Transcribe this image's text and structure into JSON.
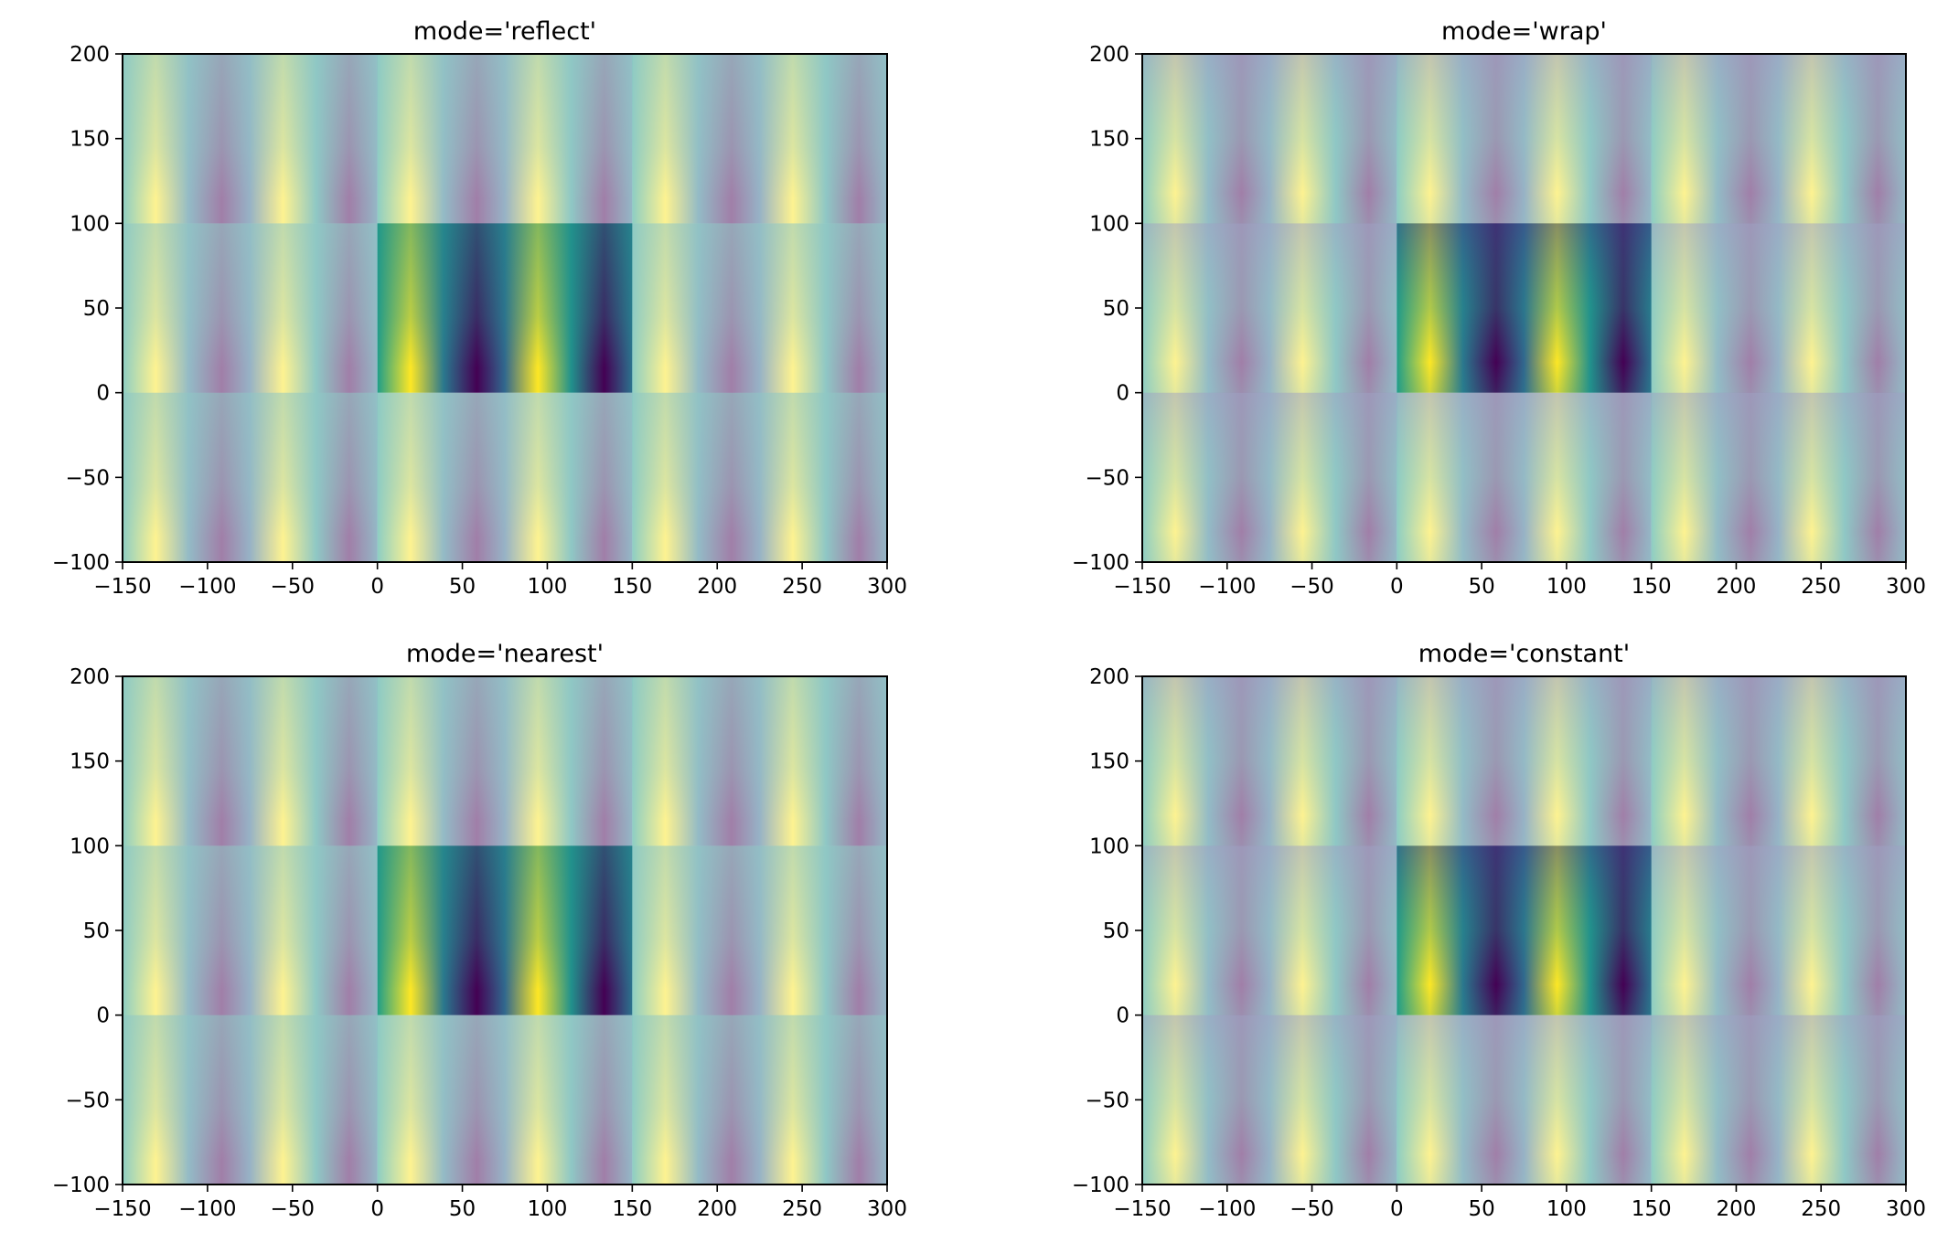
{
  "chart_data": [
    {
      "type": "heatmap",
      "title": "mode='reflect'",
      "mode": "reflect",
      "xlim": [
        -150,
        300
      ],
      "ylim": [
        -100,
        200
      ],
      "xticks": [
        -150,
        -100,
        -50,
        0,
        50,
        100,
        150,
        200,
        250,
        300
      ],
      "yticks": [
        -100,
        -50,
        0,
        50,
        100,
        150,
        200
      ],
      "xtick_labels": [
        "−150",
        "−100",
        "−50",
        "0",
        "50",
        "100",
        "150",
        "200",
        "250",
        "300"
      ],
      "ytick_labels": [
        "−100",
        "−50",
        "0",
        "50",
        "100",
        "150",
        "200"
      ],
      "image_extent": [
        0,
        150,
        0,
        100
      ],
      "colormap": "viridis",
      "padding_alpha": 0.5
    },
    {
      "type": "heatmap",
      "title": "mode='wrap'",
      "mode": "wrap",
      "xlim": [
        -150,
        300
      ],
      "ylim": [
        -100,
        200
      ],
      "xticks": [
        -150,
        -100,
        -50,
        0,
        50,
        100,
        150,
        200,
        250,
        300
      ],
      "yticks": [
        -100,
        -50,
        0,
        50,
        100,
        150,
        200
      ],
      "xtick_labels": [
        "−150",
        "−100",
        "−50",
        "0",
        "50",
        "100",
        "150",
        "200",
        "250",
        "300"
      ],
      "ytick_labels": [
        "−100",
        "−50",
        "0",
        "50",
        "100",
        "150",
        "200"
      ],
      "image_extent": [
        0,
        150,
        0,
        100
      ],
      "colormap": "viridis",
      "padding_alpha": 0.5
    },
    {
      "type": "heatmap",
      "title": "mode='nearest'",
      "mode": "nearest",
      "xlim": [
        -150,
        300
      ],
      "ylim": [
        -100,
        200
      ],
      "xticks": [
        -150,
        -100,
        -50,
        0,
        50,
        100,
        150,
        200,
        250,
        300
      ],
      "yticks": [
        -100,
        -50,
        0,
        50,
        100,
        150,
        200
      ],
      "xtick_labels": [
        "−150",
        "−100",
        "−50",
        "0",
        "50",
        "100",
        "150",
        "200",
        "250",
        "300"
      ],
      "ytick_labels": [
        "−100",
        "−50",
        "0",
        "50",
        "100",
        "150",
        "200"
      ],
      "image_extent": [
        0,
        150,
        0,
        100
      ],
      "colormap": "viridis",
      "padding_alpha": 0.5
    },
    {
      "type": "heatmap",
      "title": "mode='constant'",
      "mode": "constant",
      "xlim": [
        -150,
        300
      ],
      "ylim": [
        -100,
        200
      ],
      "xticks": [
        -150,
        -100,
        -50,
        0,
        50,
        100,
        150,
        200,
        250,
        300
      ],
      "yticks": [
        -100,
        -50,
        0,
        50,
        100,
        150,
        200
      ],
      "xtick_labels": [
        "−150",
        "−100",
        "−50",
        "0",
        "50",
        "100",
        "150",
        "200",
        "250",
        "300"
      ],
      "ytick_labels": [
        "−100",
        "−50",
        "0",
        "50",
        "100",
        "150",
        "200"
      ],
      "image_extent": [
        0,
        150,
        0,
        100
      ],
      "colormap": "viridis",
      "padding_alpha": 0.5
    }
  ]
}
